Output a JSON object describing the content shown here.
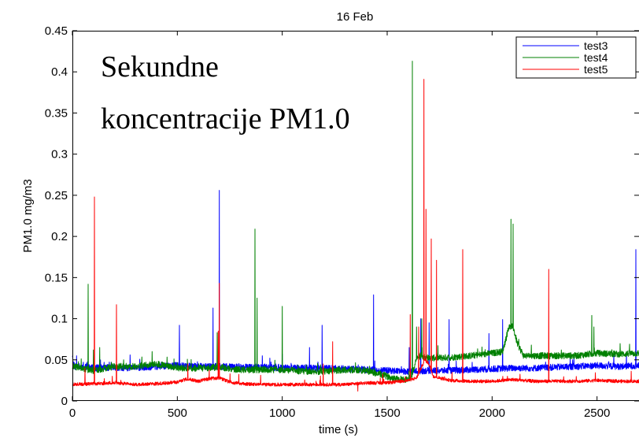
{
  "chart_data": {
    "type": "line",
    "title": "16 Feb",
    "xlabel": "time (s)",
    "ylabel": "PM1.0 mg/m3",
    "annotation": [
      "Sekundne",
      "koncentracije PM1.0"
    ],
    "xlim": [
      0,
      2700
    ],
    "ylim": [
      0,
      0.45
    ],
    "xticks": [
      0,
      500,
      1000,
      1500,
      2000,
      2500
    ],
    "xtick_labels": [
      "0",
      "500",
      "1000",
      "1500",
      "2000",
      "2500"
    ],
    "yticks": [
      0,
      0.05,
      0.1,
      0.15,
      0.2,
      0.25,
      0.3,
      0.35,
      0.4,
      0.45
    ],
    "ytick_labels": [
      "0",
      "0.05",
      "0.1",
      "0.15",
      "0.2",
      "0.25",
      "0.3",
      "0.35",
      "0.4",
      "0.45"
    ],
    "grid": false,
    "legend_position": "top-right",
    "series": [
      {
        "name": "test3",
        "color": "#0000ff",
        "base_points": [
          [
            0,
            0.052
          ],
          [
            10,
            0.042
          ],
          [
            100,
            0.04
          ],
          [
            200,
            0.041
          ],
          [
            300,
            0.04
          ],
          [
            400,
            0.042
          ],
          [
            500,
            0.043
          ],
          [
            600,
            0.042
          ],
          [
            700,
            0.042
          ],
          [
            800,
            0.041
          ],
          [
            900,
            0.041
          ],
          [
            1000,
            0.04
          ],
          [
            1100,
            0.04
          ],
          [
            1200,
            0.04
          ],
          [
            1300,
            0.039
          ],
          [
            1400,
            0.038
          ],
          [
            1500,
            0.037
          ],
          [
            1600,
            0.036
          ],
          [
            1700,
            0.037
          ],
          [
            1800,
            0.037
          ],
          [
            1900,
            0.038
          ],
          [
            2000,
            0.039
          ],
          [
            2100,
            0.04
          ],
          [
            2200,
            0.04
          ],
          [
            2300,
            0.041
          ],
          [
            2400,
            0.042
          ],
          [
            2500,
            0.043
          ],
          [
            2600,
            0.042
          ],
          [
            2700,
            0.043
          ]
        ],
        "spikes": [
          [
            20,
            0.055
          ],
          [
            275,
            0.056
          ],
          [
            510,
            0.092
          ],
          [
            670,
            0.113
          ],
          [
            700,
            0.256
          ],
          [
            905,
            0.055
          ],
          [
            1000,
            0.057
          ],
          [
            1130,
            0.065
          ],
          [
            1190,
            0.092
          ],
          [
            1435,
            0.129
          ],
          [
            1605,
            0.065
          ],
          [
            1660,
            0.1
          ],
          [
            1700,
            0.095
          ],
          [
            1795,
            0.099
          ],
          [
            1985,
            0.082
          ],
          [
            2050,
            0.099
          ],
          [
            2390,
            0.052
          ],
          [
            2580,
            0.055
          ],
          [
            2640,
            0.06
          ],
          [
            2685,
            0.184
          ]
        ],
        "noise": 0.004
      },
      {
        "name": "test4",
        "color": "#008000",
        "base_points": [
          [
            0,
            0.042
          ],
          [
            100,
            0.037
          ],
          [
            200,
            0.042
          ],
          [
            300,
            0.042
          ],
          [
            400,
            0.045
          ],
          [
            500,
            0.04
          ],
          [
            600,
            0.04
          ],
          [
            700,
            0.041
          ],
          [
            800,
            0.038
          ],
          [
            900,
            0.038
          ],
          [
            1000,
            0.038
          ],
          [
            1100,
            0.036
          ],
          [
            1200,
            0.036
          ],
          [
            1300,
            0.038
          ],
          [
            1400,
            0.037
          ],
          [
            1500,
            0.03
          ],
          [
            1550,
            0.027
          ],
          [
            1600,
            0.026
          ],
          [
            1620,
            0.033
          ],
          [
            1640,
            0.052
          ],
          [
            1660,
            0.055
          ],
          [
            1700,
            0.052
          ],
          [
            1800,
            0.053
          ],
          [
            1900,
            0.055
          ],
          [
            2000,
            0.058
          ],
          [
            2050,
            0.06
          ],
          [
            2080,
            0.09
          ],
          [
            2100,
            0.09
          ],
          [
            2120,
            0.07
          ],
          [
            2150,
            0.055
          ],
          [
            2200,
            0.055
          ],
          [
            2300,
            0.055
          ],
          [
            2400,
            0.055
          ],
          [
            2500,
            0.058
          ],
          [
            2600,
            0.057
          ],
          [
            2700,
            0.058
          ]
        ],
        "spikes": [
          [
            75,
            0.142
          ],
          [
            100,
            0.062
          ],
          [
            130,
            0.065
          ],
          [
            380,
            0.06
          ],
          [
            690,
            0.083
          ],
          [
            700,
            0.075
          ],
          [
            870,
            0.209
          ],
          [
            880,
            0.125
          ],
          [
            1000,
            0.115
          ],
          [
            1620,
            0.413
          ],
          [
            1640,
            0.09
          ],
          [
            1665,
            0.1
          ],
          [
            2090,
            0.221
          ],
          [
            2100,
            0.215
          ],
          [
            2475,
            0.104
          ],
          [
            2485,
            0.09
          ]
        ],
        "noise": 0.004
      },
      {
        "name": "test5",
        "color": "#ff0000",
        "base_points": [
          [
            0,
            0.02
          ],
          [
            100,
            0.021
          ],
          [
            200,
            0.022
          ],
          [
            300,
            0.02
          ],
          [
            400,
            0.021
          ],
          [
            500,
            0.023
          ],
          [
            550,
            0.027
          ],
          [
            600,
            0.024
          ],
          [
            650,
            0.027
          ],
          [
            700,
            0.028
          ],
          [
            750,
            0.023
          ],
          [
            800,
            0.021
          ],
          [
            900,
            0.02
          ],
          [
            1000,
            0.02
          ],
          [
            1100,
            0.02
          ],
          [
            1200,
            0.02
          ],
          [
            1300,
            0.02
          ],
          [
            1400,
            0.022
          ],
          [
            1500,
            0.022
          ],
          [
            1600,
            0.025
          ],
          [
            1640,
            0.028
          ],
          [
            1680,
            0.05
          ],
          [
            1700,
            0.045
          ],
          [
            1720,
            0.03
          ],
          [
            1800,
            0.025
          ],
          [
            1900,
            0.024
          ],
          [
            2000,
            0.024
          ],
          [
            2100,
            0.026
          ],
          [
            2200,
            0.024
          ],
          [
            2300,
            0.024
          ],
          [
            2400,
            0.024
          ],
          [
            2500,
            0.025
          ],
          [
            2600,
            0.024
          ],
          [
            2700,
            0.024
          ]
        ],
        "spikes": [
          [
            60,
            0.04
          ],
          [
            105,
            0.248
          ],
          [
            210,
            0.117
          ],
          [
            550,
            0.045
          ],
          [
            700,
            0.143
          ],
          [
            695,
            0.085
          ],
          [
            1195,
            0.045
          ],
          [
            1240,
            0.072
          ],
          [
            1360,
            0.012
          ],
          [
            1610,
            0.105
          ],
          [
            1650,
            0.09
          ],
          [
            1675,
            0.391
          ],
          [
            1685,
            0.233
          ],
          [
            1710,
            0.197
          ],
          [
            1735,
            0.171
          ],
          [
            1860,
            0.184
          ],
          [
            2270,
            0.16
          ]
        ],
        "noise": 0.002
      }
    ]
  }
}
